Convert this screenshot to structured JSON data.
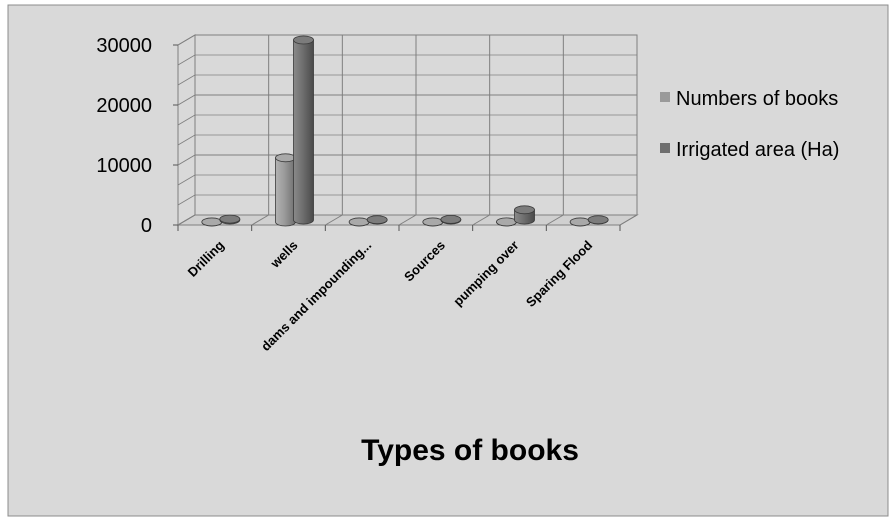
{
  "chart_data": {
    "type": "bar",
    "style": "3d-cylinder",
    "categories": [
      "Drilling",
      "wells",
      "dams and impounding...",
      "Sources",
      "pumping over",
      "Sparing Flood"
    ],
    "series": [
      {
        "name": "Numbers of books",
        "values": [
          10,
          10700,
          10,
          10,
          20,
          10
        ],
        "color": "#9a9a9a"
      },
      {
        "name": "Irrigated area (Ha)",
        "values": [
          150,
          30000,
          50,
          100,
          1700,
          40
        ],
        "color": "#6f6f6f"
      }
    ],
    "xlabel": "Types of books",
    "ylabel": "",
    "ylim": [
      0,
      30000
    ],
    "yticks": [
      0,
      10000,
      20000,
      30000
    ],
    "grid": true,
    "legend_position": "right",
    "background": "#d9d9d9",
    "grid_color": "#7f7f7f"
  }
}
